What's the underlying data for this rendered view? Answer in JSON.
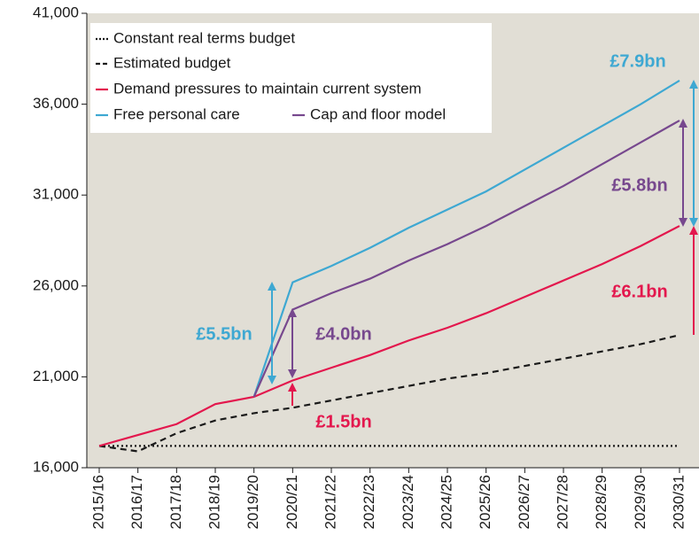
{
  "chart_data": {
    "type": "line",
    "categories": [
      "2015/16",
      "2016/17",
      "2017/18",
      "2018/19",
      "2019/20",
      "2020/21",
      "2021/22",
      "2022/23",
      "2023/24",
      "2024/25",
      "2025/26",
      "2026/27",
      "2027/28",
      "2028/29",
      "2029/30",
      "2030/31"
    ],
    "series": [
      {
        "name": "Constant real terms budget",
        "color": "#1a1a1a",
        "style": "dotted",
        "values": [
          17200,
          17200,
          17200,
          17200,
          17200,
          17200,
          17200,
          17200,
          17200,
          17200,
          17200,
          17200,
          17200,
          17200,
          17200,
          17200
        ]
      },
      {
        "name": "Estimated budget",
        "color": "#1a1a1a",
        "style": "dashed",
        "values": [
          17200,
          16900,
          17900,
          18600,
          19000,
          19300,
          19700,
          20100,
          20500,
          20900,
          21200,
          21600,
          22000,
          22400,
          22800,
          23300
        ]
      },
      {
        "name": "Demand pressures to maintain current system",
        "color": "#e3174d",
        "style": "solid",
        "values": [
          17200,
          17800,
          18400,
          19500,
          19900,
          20800,
          21500,
          22200,
          23000,
          23700,
          24500,
          25400,
          26300,
          27200,
          28200,
          29300
        ]
      },
      {
        "name": "Free personal care",
        "color": "#3ea8d2",
        "style": "solid",
        "values": [
          null,
          null,
          null,
          null,
          19900,
          26200,
          27100,
          28100,
          29200,
          30200,
          31200,
          32400,
          33600,
          34800,
          36000,
          37300
        ]
      },
      {
        "name": "Cap and floor model",
        "color": "#77488e",
        "style": "solid",
        "values": [
          null,
          null,
          null,
          null,
          19900,
          24700,
          25600,
          26400,
          27400,
          28300,
          29300,
          30400,
          31500,
          32700,
          33900,
          35100
        ]
      }
    ],
    "ylim": [
      16000,
      41000
    ],
    "yticks": [
      {
        "value": 16000,
        "label": "16,000"
      },
      {
        "value": 21000,
        "label": "21,000"
      },
      {
        "value": 26000,
        "label": "26,000"
      },
      {
        "value": 31000,
        "label": "31,000"
      },
      {
        "value": 36000,
        "label": "36,000"
      },
      {
        "value": 41000,
        "label": "41,000"
      }
    ],
    "annotations": [
      {
        "text": "£5.5bn",
        "color": "#3ea8d2"
      },
      {
        "text": "£4.0bn",
        "color": "#77488e"
      },
      {
        "text": "£1.5bn",
        "color": "#e3174d"
      },
      {
        "text": "£7.9bn",
        "color": "#3ea8d2"
      },
      {
        "text": "£5.8bn",
        "color": "#77488e"
      },
      {
        "text": "£6.1bn",
        "color": "#e3174d"
      }
    ]
  }
}
